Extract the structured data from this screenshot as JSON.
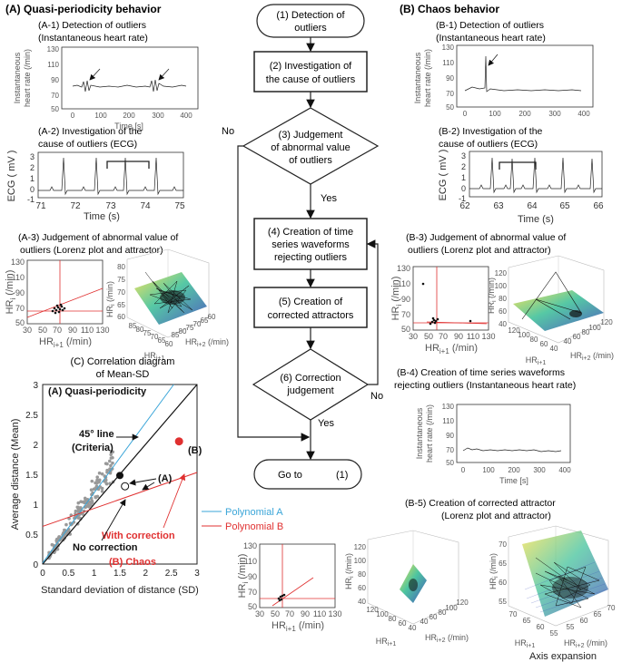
{
  "panelA": {
    "title": "(A) Quasi-periodicity behavior",
    "a1": {
      "line1": "(A-1) Detection of outliers",
      "line2": "(Instantaneous heart rate)",
      "ylabel1": "Instantaneous",
      "ylabel2": "heart rate (/min)",
      "xlabel": "Time [s]",
      "yticks": [
        "130",
        "110",
        "90",
        "70",
        "50"
      ],
      "xticks": [
        "0",
        "100",
        "200",
        "300",
        "400"
      ]
    },
    "a2": {
      "line1": "(A-2) Investigation of the",
      "line2": "cause of outliers (ECG)",
      "ylabel": "ECG ( mV )",
      "xlabel": "Time (s)",
      "yticks": [
        "3",
        "2",
        "1",
        "0",
        "-1"
      ],
      "xticks": [
        "71",
        "72",
        "73",
        "74",
        "75"
      ]
    },
    "a3": {
      "line1": "(A-3) Judgement of abnormal value of",
      "line2": "outliers (Lorenz plot and attractor)",
      "ylabel": "HR",
      "ysub": "i",
      "yunit": " (/min)",
      "xlabel": "HR",
      "xsub": "i+1",
      "xunit": " (/min)",
      "yticks": [
        "130",
        "110",
        "90",
        "70",
        "50"
      ],
      "xticks": [
        "30",
        "50",
        "70",
        "90",
        "110",
        "130"
      ],
      "z3d_ticks": [
        "80",
        "75",
        "70",
        "65",
        "60"
      ],
      "x3d_ticks": [
        "85",
        "80",
        "75",
        "70",
        "65",
        "60"
      ],
      "y3d_ticks": [
        "85",
        "80",
        "75",
        "70",
        "65",
        "60"
      ],
      "x3d_label": "HR",
      "x3d_sub": "i+1",
      "y3d_label": "HR",
      "y3d_sub": "i+2",
      "y3d_unit": " (/min)",
      "z3d_label": "HR",
      "z3d_sub": "i",
      "z3d_unit": " (/min)"
    }
  },
  "panelB": {
    "title": "(B) Chaos behavior",
    "b1": {
      "line1": "(B-1) Detection of outliers",
      "line2": "(Instantaneous heart rate)",
      "ylabel1": "Instantaneous",
      "ylabel2": "heart rate (/min)",
      "yticks": [
        "130",
        "110",
        "90",
        "70",
        "50"
      ],
      "xticks": [
        "0",
        "100",
        "200",
        "300",
        "400"
      ]
    },
    "b2": {
      "line1": "(B-2) Investigation of the",
      "line2": "cause of outliers (ECG)",
      "ylabel": "ECG ( mV )",
      "xlabel": "Time (s)",
      "yticks": [
        "3",
        "2",
        "1",
        "0",
        "-1"
      ],
      "xticks": [
        "62",
        "63",
        "64",
        "65",
        "66"
      ]
    },
    "b3": {
      "line1": "(B-3) Judgement of abnormal value of",
      "line2": "outliers (Lorenz plot and attractor)",
      "yticks": [
        "130",
        "110",
        "90",
        "70",
        "50"
      ],
      "xticks": [
        "30",
        "50",
        "70",
        "90",
        "110",
        "130"
      ],
      "z3d_ticks": [
        "120",
        "100",
        "80",
        "60",
        "40"
      ],
      "x3d_ticks": [
        "120",
        "100",
        "80",
        "60",
        "40"
      ],
      "y3d_ticks": [
        "40",
        "60",
        "80",
        "100",
        "120"
      ]
    },
    "b4": {
      "line1": "(B-4) Creation of time series waveforms",
      "line2": "rejecting outliers (Instantaneous heart rate)",
      "ylabel1": "Instantaneous",
      "ylabel2": "heart rate (/min)",
      "xlabel": "Time [s]",
      "yticks": [
        "130",
        "110",
        "90",
        "70",
        "50"
      ],
      "xticks": [
        "0",
        "100",
        "200",
        "300",
        "400"
      ]
    },
    "b5": {
      "title": "(B-5) Creation of corrected attractor",
      "subtitle": "(Lorenz plot and attractor)",
      "yticks": [
        "130",
        "110",
        "90",
        "70",
        "50"
      ],
      "xticks": [
        "30",
        "50",
        "70",
        "90",
        "110",
        "130"
      ],
      "m_z": [
        "120",
        "100",
        "80",
        "60",
        "40"
      ],
      "m_x": [
        "120",
        "100",
        "80",
        "60",
        "40"
      ],
      "m_y": [
        "40",
        "60",
        "80",
        "100",
        "120"
      ],
      "r_z": [
        "70",
        "65",
        "60",
        "55"
      ],
      "r_x": [
        "70",
        "65",
        "60",
        "55"
      ],
      "r_y": [
        "55",
        "60",
        "65",
        "70"
      ],
      "axis_exp": "Axis expansion"
    }
  },
  "flow": {
    "s1": "(1) Detection of",
    "s1b": "outliers",
    "s2": "(2) Investigation of",
    "s2b": "the cause of outliers",
    "s3": "(3) Judgement",
    "s3b": "of abnormal value",
    "s3c": "of outliers",
    "s4": "(4) Creation of time",
    "s4b": "series waveforms",
    "s4c": "rejecting outliers",
    "s5": "(5) Creation of",
    "s5b": "corrected attractors",
    "s6": "(6) Correction",
    "s6b": "judgement",
    "goto": "Go to",
    "goto_num": "(1)",
    "no1": "No",
    "yes1": "Yes",
    "no2": "No",
    "yes2": "Yes"
  },
  "panelC": {
    "title1": "(C) Correlation diagram",
    "title2": "of Mean-SD",
    "ylabel": "Average distance (Mean)",
    "xlabel": "Standard deviation of distance (SD)",
    "qp_label": "(A) Quasi-periodicity",
    "line45a": "45° line",
    "line45b": "(Criteria)",
    "labelB": "(B)",
    "labelA": "(A)",
    "with_corr": "With correction",
    "no_corr": "No correction",
    "chaos": "(B) Chaos",
    "legend": [
      {
        "name": "Polynomial A",
        "color": "#3aa5d8"
      },
      {
        "name": "Polynomial B",
        "color": "#e03030"
      }
    ],
    "xticks": [
      "0",
      "0.5",
      "1",
      "1.5",
      "2",
      "2.5",
      "3"
    ],
    "yticks": [
      "0",
      "0.5",
      "1",
      "1.5",
      "2",
      "2.5",
      "3"
    ]
  },
  "chart_data": {
    "type": "scatter",
    "title": "(C) Correlation diagram of Mean-SD",
    "xlabel": "Standard deviation of distance (SD)",
    "ylabel": "Average distance (Mean)",
    "xlim": [
      0,
      3
    ],
    "ylim": [
      0,
      3
    ],
    "series": [
      {
        "name": "Filled black points",
        "x": [
          1.5
        ],
        "y": [
          1.48
        ]
      },
      {
        "name": "Open points",
        "x": [
          1.6
        ],
        "y": [
          1.3
        ]
      },
      {
        "name": "Chaos (B)",
        "x": [
          2.65
        ],
        "y": [
          2.05
        ]
      }
    ],
    "lines": [
      {
        "name": "45° line",
        "slope": 1,
        "intercept": 0
      },
      {
        "name": "Polynomial A",
        "slope": 1.17,
        "intercept": 0.02
      },
      {
        "name": "Polynomial B",
        "slope": 0.3,
        "intercept": 0.63
      }
    ]
  },
  "colors": {
    "red": "#e03030",
    "blue": "#3aa5d8"
  }
}
